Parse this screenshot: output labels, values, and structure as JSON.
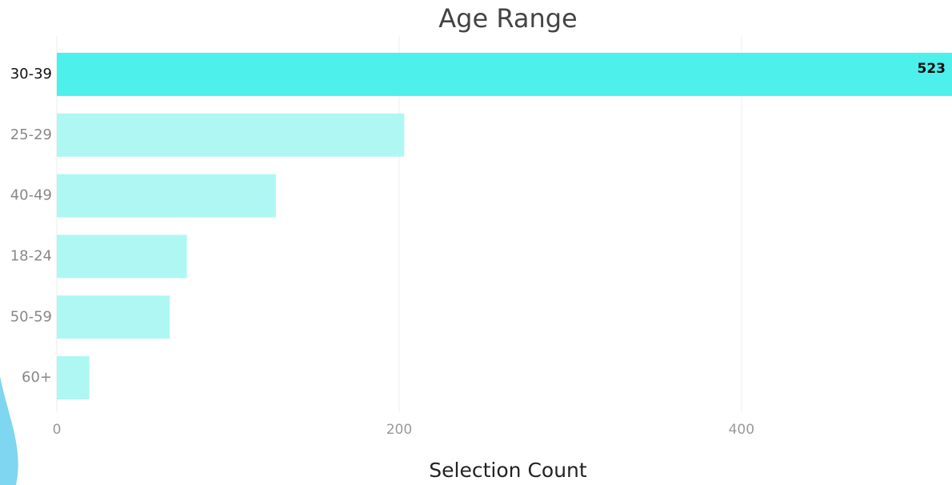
{
  "chart_data": {
    "type": "hbar",
    "title": "Age Range",
    "x_label": "Selection Count",
    "categories": [
      "30-39",
      "25-29",
      "40-49",
      "18-24",
      "50-59",
      "60+"
    ],
    "values": [
      523,
      203,
      128,
      76,
      66,
      19
    ],
    "colors": [
      "#4df0ea",
      "#aef7f3",
      "#aef7f3",
      "#aef7f3",
      "#aef7f3",
      "#aef7f3"
    ],
    "xlim": [
      0,
      523
    ],
    "xticks": [
      0,
      200,
      400
    ],
    "grid": true
  }
}
